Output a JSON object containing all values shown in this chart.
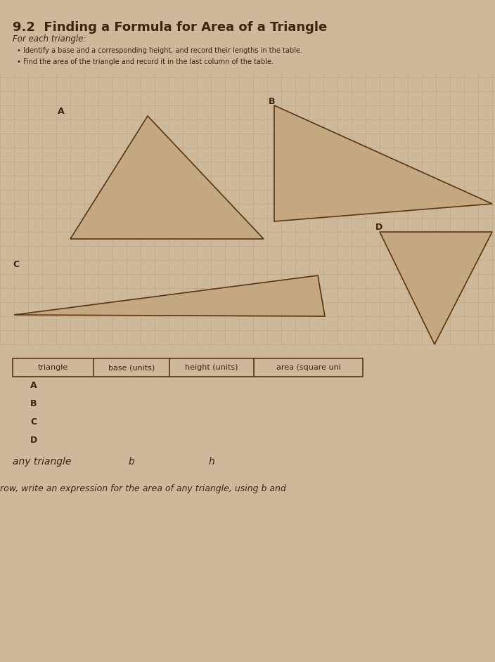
{
  "bg_color": "#cdb99a",
  "grid_color": "#b8a080",
  "triangle_fill": "#c4a882",
  "triangle_edge": "#5a3510",
  "title": "9.2  Finding a Formula for Area of a Triangle",
  "subtitle": "For each triangle:",
  "bullet1": "Identify a base and a corresponding height, and record their lengths in the table.",
  "bullet2": "Find the area of the triangle and record it in the last column of the table.",
  "table_headers": [
    "triangle",
    "base (units)",
    "height (units)",
    "area (square uni"
  ],
  "table_rows": [
    "A",
    "B",
    "C",
    "D"
  ],
  "any_triangle_label": "any triangle",
  "any_triangle_b": "b",
  "any_triangle_h": "h",
  "bottom_text": "row, write an expression for the area of any triangle, using b and",
  "label_A": "A",
  "label_B": "B",
  "label_C": "C",
  "label_D": "D",
  "text_color": "#3d2408",
  "table_edge_color": "#5a3510"
}
